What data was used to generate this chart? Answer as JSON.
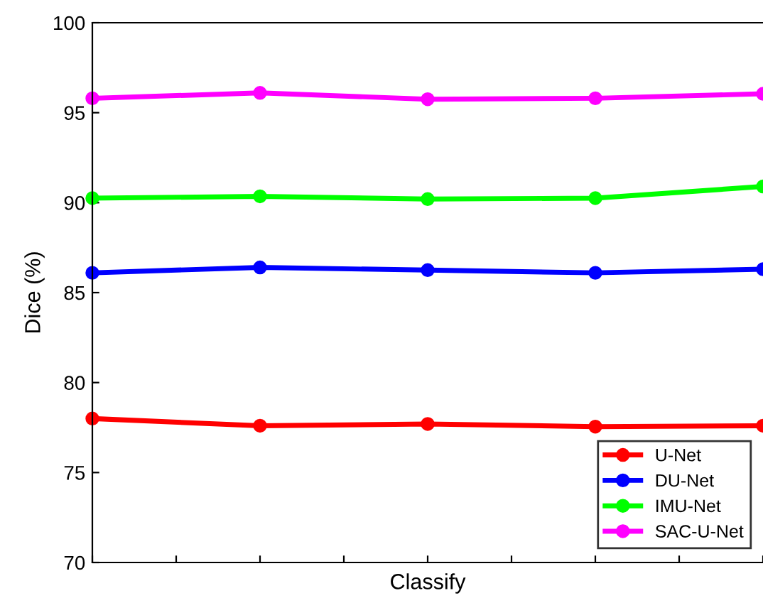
{
  "chart_data": {
    "type": "line",
    "xlabel": "Classify",
    "ylabel": "Dice (%)",
    "categories": [
      null,
      null,
      null,
      null,
      null
    ],
    "series": [
      {
        "name": "U-Net",
        "color": "#ff0000",
        "values": [
          78.0,
          77.6,
          77.7,
          77.55,
          77.6
        ]
      },
      {
        "name": "DU-Net",
        "color": "#0000ff",
        "values": [
          86.1,
          86.4,
          86.25,
          86.1,
          86.3
        ]
      },
      {
        "name": "IMU-Net",
        "color": "#00ff00",
        "values": [
          90.25,
          90.35,
          90.2,
          90.25,
          90.9
        ]
      },
      {
        "name": "SAC-U-Net",
        "color": "#ff00ff",
        "values": [
          95.8,
          96.1,
          95.75,
          95.8,
          96.05
        ]
      }
    ],
    "ylim": [
      70,
      100
    ],
    "yticks": [
      70,
      75,
      80,
      85,
      90,
      95,
      100
    ],
    "legend": "bottom right",
    "marker": "circle",
    "line_style": "solid",
    "grid": false
  }
}
